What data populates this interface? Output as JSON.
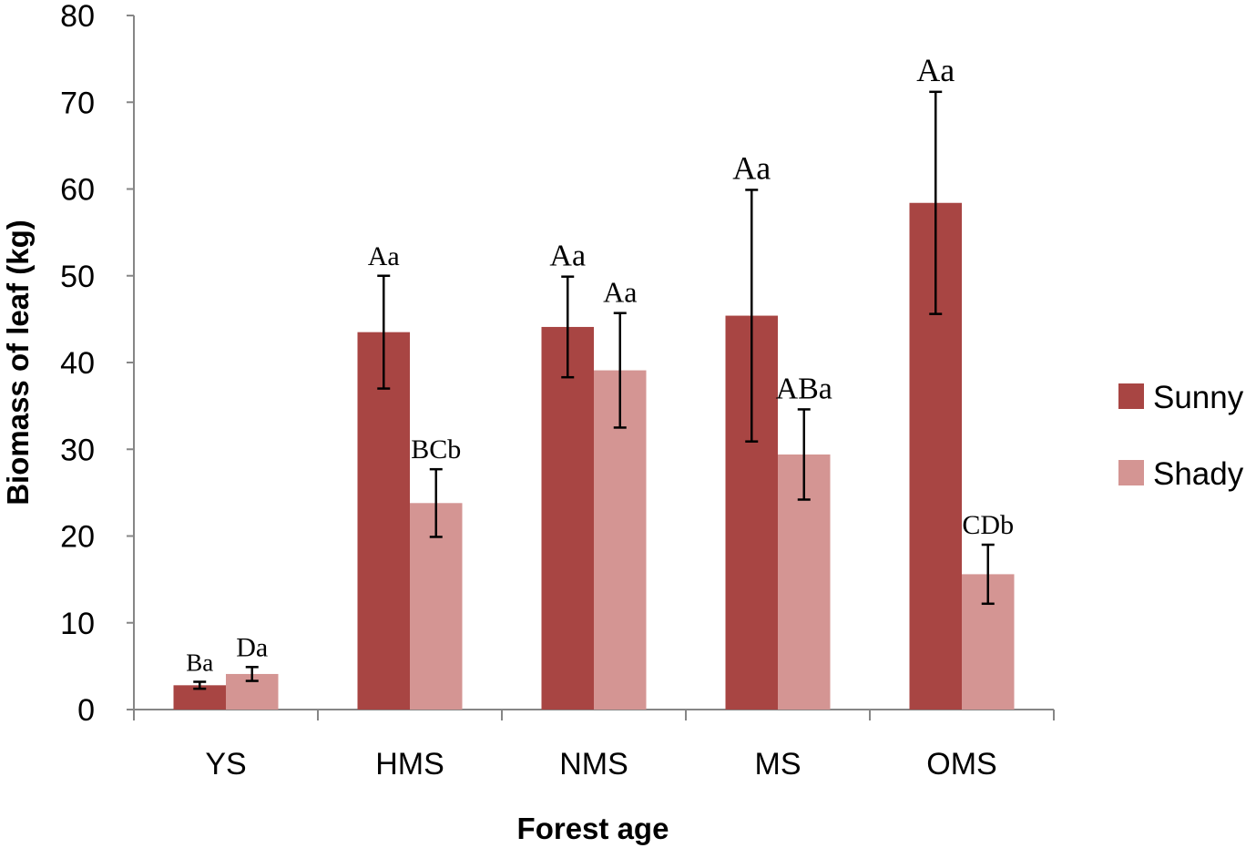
{
  "chart_data": {
    "type": "bar",
    "xlabel": "Forest age",
    "ylabel": "Biomass of leaf (kg)",
    "ylim": [
      0,
      80
    ],
    "yticks": [
      0,
      10,
      20,
      30,
      40,
      50,
      60,
      70,
      80
    ],
    "categories": [
      "YS",
      "HMS",
      "NMS",
      "MS",
      "OMS"
    ],
    "grid": false,
    "legend_position": "right",
    "series": [
      {
        "name": "Sunny",
        "color": "#A84543",
        "values": [
          2.8,
          43.5,
          44.1,
          45.4,
          58.4
        ],
        "error": [
          0.4,
          6.5,
          5.8,
          14.5,
          12.8
        ],
        "labels": [
          "Ba",
          "Aa",
          "Aa",
          "Aa",
          "Aa"
        ]
      },
      {
        "name": "Shady",
        "color": "#D49593",
        "values": [
          4.1,
          23.8,
          39.1,
          29.4,
          15.6
        ],
        "error": [
          0.8,
          3.9,
          6.6,
          5.2,
          3.4
        ],
        "labels": [
          "Da",
          "BCb",
          "Aa",
          "ABa",
          "CDb"
        ]
      }
    ]
  }
}
